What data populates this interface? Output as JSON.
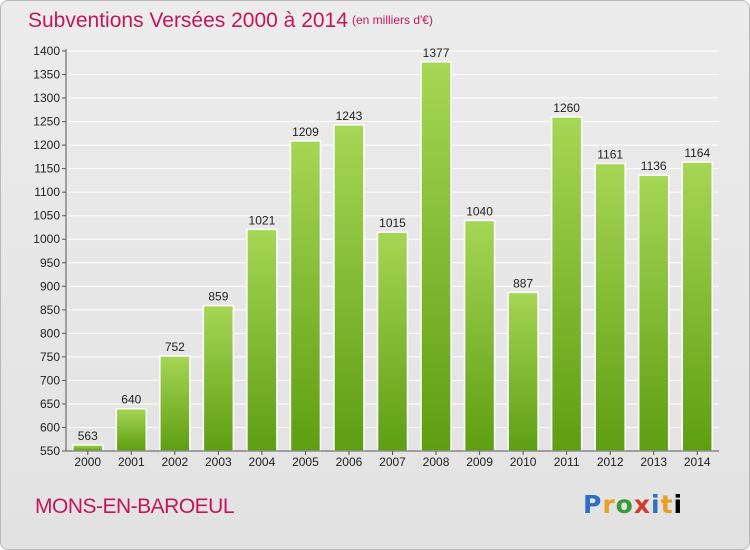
{
  "title": "Subventions Versées 2000 à 2014",
  "subtitle": "(en milliers d'€)",
  "commune": "MONS-EN-BAROEUL",
  "logo": "Proxiti",
  "colors": {
    "title": "#c2185b",
    "bar_top": "#a6d655",
    "bar_bottom": "#5e9e12",
    "grid": "#ffffff"
  },
  "chart_data": {
    "type": "bar",
    "categories": [
      "2000",
      "2001",
      "2002",
      "2003",
      "2004",
      "2005",
      "2006",
      "2007",
      "2008",
      "2009",
      "2010",
      "2011",
      "2012",
      "2013",
      "2014"
    ],
    "values": [
      563,
      640,
      752,
      859,
      1021,
      1209,
      1243,
      1015,
      1377,
      1040,
      887,
      1260,
      1161,
      1136,
      1164
    ],
    "ylim": [
      550,
      1400
    ],
    "yticks": [
      550,
      600,
      650,
      700,
      750,
      800,
      850,
      900,
      950,
      1000,
      1050,
      1100,
      1150,
      1200,
      1250,
      1300,
      1350,
      1400
    ],
    "grid": true,
    "data_labels": true
  }
}
